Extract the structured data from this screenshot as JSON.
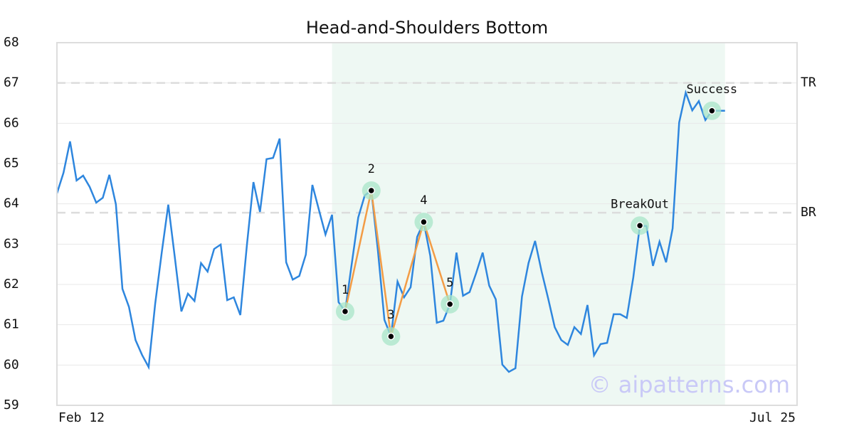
{
  "chart_data": {
    "type": "line",
    "title": "Head-and-Shoulders Bottom",
    "x": [
      0,
      1,
      2,
      3,
      4,
      5,
      6,
      7,
      8,
      9,
      10,
      11,
      12,
      13,
      14,
      15,
      16,
      17,
      18,
      19,
      20,
      21,
      22,
      23,
      24,
      25,
      26,
      27,
      28,
      29,
      30,
      31,
      32,
      33,
      34,
      35,
      36,
      37,
      38,
      39,
      40,
      41,
      42,
      43,
      44,
      45,
      46,
      47,
      48,
      49,
      50,
      51,
      52,
      53,
      54,
      55,
      56,
      57,
      58,
      59,
      60,
      61,
      62,
      63,
      64,
      65,
      66,
      67,
      68,
      69,
      70,
      71,
      72,
      73,
      74,
      75,
      76,
      77,
      78,
      79,
      80,
      81,
      82,
      83,
      84,
      85,
      86,
      87,
      88,
      89,
      90,
      91,
      92,
      93,
      94,
      95,
      96,
      97,
      98,
      99,
      100,
      101,
      102
    ],
    "series": [
      {
        "color": "#2e86de",
        "values": [
          64.26,
          64.77,
          65.55,
          64.58,
          64.7,
          64.42,
          64.03,
          64.15,
          64.72,
          63.99,
          61.89,
          61.44,
          60.62,
          60.25,
          59.95,
          61.52,
          62.79,
          63.98,
          62.67,
          61.33,
          61.77,
          61.59,
          62.53,
          62.32,
          62.88,
          62.99,
          61.61,
          61.68,
          61.24,
          62.97,
          64.54,
          63.8,
          65.11,
          65.14,
          65.62,
          62.55,
          62.12,
          62.21,
          62.74,
          64.47,
          63.85,
          63.24,
          63.73,
          61.56,
          61.33,
          62.5,
          63.66,
          64.21,
          64.33,
          62.85,
          61.12,
          60.71,
          62.07,
          61.68,
          61.93,
          63.18,
          63.55,
          62.71,
          61.05,
          61.1,
          61.51,
          62.79,
          61.72,
          61.81,
          62.28,
          62.79,
          61.97,
          61.63,
          60.01,
          59.83,
          59.92,
          61.7,
          62.53,
          63.08,
          62.32,
          61.65,
          60.94,
          60.62,
          60.5,
          60.94,
          60.77,
          61.49,
          60.24,
          60.52,
          60.55,
          61.26,
          61.26,
          61.17,
          62.18,
          63.46,
          63.45,
          62.46,
          63.06,
          62.55,
          63.39,
          66.02,
          66.76,
          66.32,
          66.55,
          66.08,
          66.31,
          66.31,
          66.31
        ]
      }
    ],
    "pattern": {
      "color": "#f39c45",
      "labels": [
        "1",
        "2",
        "3",
        "4",
        "5"
      ],
      "x": [
        44,
        48,
        51,
        56,
        60
      ],
      "values": [
        61.33,
        64.33,
        60.71,
        63.55,
        61.51
      ]
    },
    "signals": [
      {
        "label": "BreakOut",
        "x": 89,
        "value": 63.46
      },
      {
        "label": "Success",
        "x": 100,
        "value": 66.31
      }
    ],
    "levels": [
      {
        "label": "TR",
        "value": 67
      },
      {
        "label": "BR",
        "value": 63.78
      }
    ],
    "highlight_range": [
      42,
      102
    ],
    "xlim": [
      0,
      113
    ],
    "xticks": [
      {
        "value": 0,
        "label": "Feb 12"
      },
      {
        "value": 113,
        "label": "Jul 25"
      }
    ],
    "ylim": [
      59,
      68
    ],
    "yticks": [
      59,
      60,
      61,
      62,
      63,
      64,
      65,
      66,
      67,
      68
    ],
    "grid": true,
    "watermark": "© aipatterns.com"
  }
}
